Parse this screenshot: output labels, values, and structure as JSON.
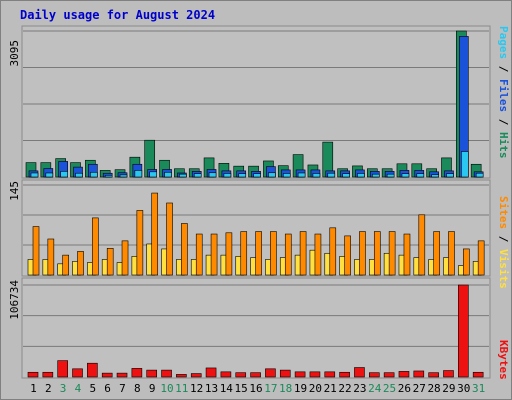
{
  "chart_data": [
    {
      "type": "bar",
      "title": "Daily usage for August 2024",
      "categories": [
        "1",
        "2",
        "3",
        "4",
        "5",
        "6",
        "7",
        "8",
        "9",
        "10",
        "11",
        "12",
        "13",
        "14",
        "15",
        "16",
        "17",
        "18",
        "19",
        "20",
        "21",
        "22",
        "23",
        "24",
        "25",
        "26",
        "27",
        "28",
        "29",
        "30",
        "31"
      ],
      "weekend_days": [
        "3",
        "4",
        "10",
        "11",
        "17",
        "18",
        "24",
        "25",
        "31"
      ],
      "ymax_label": "3095",
      "ylim": [
        0,
        3095
      ],
      "right_label": {
        "parts": [
          "Pages",
          "Files",
          "Hits"
        ],
        "separator": " / "
      },
      "series": [
        {
          "name": "Hits",
          "color": "#1a8a5a",
          "values": [
            305,
            305,
            390,
            305,
            355,
            140,
            155,
            420,
            780,
            355,
            175,
            175,
            405,
            290,
            230,
            230,
            340,
            240,
            475,
            255,
            740,
            175,
            235,
            175,
            175,
            280,
            280,
            175,
            405,
            3095,
            270
          ]
        },
        {
          "name": "Files",
          "color": "#1a52d9",
          "values": [
            130,
            180,
            330,
            210,
            270,
            80,
            90,
            270,
            160,
            160,
            85,
            120,
            160,
            130,
            130,
            120,
            220,
            150,
            150,
            150,
            130,
            130,
            150,
            120,
            120,
            140,
            140,
            110,
            130,
            2980,
            110
          ]
        },
        {
          "name": "Pages",
          "color": "#2ac8f0",
          "values": [
            85,
            85,
            120,
            80,
            100,
            35,
            45,
            140,
            110,
            100,
            60,
            70,
            90,
            75,
            70,
            70,
            90,
            75,
            85,
            75,
            80,
            70,
            75,
            60,
            60,
            70,
            70,
            50,
            70,
            540,
            80
          ]
        }
      ]
    },
    {
      "type": "bar",
      "categories": [
        "1",
        "2",
        "3",
        "4",
        "5",
        "6",
        "7",
        "8",
        "9",
        "10",
        "11",
        "12",
        "13",
        "14",
        "15",
        "16",
        "17",
        "18",
        "19",
        "20",
        "21",
        "22",
        "23",
        "24",
        "25",
        "26",
        "27",
        "28",
        "29",
        "30",
        "31"
      ],
      "ymax_label": "145",
      "ylim": [
        0,
        145
      ],
      "right_label": {
        "parts": [
          "Sites",
          "Visits"
        ],
        "separator": " / "
      },
      "series": [
        {
          "name": "Visits",
          "color": "#ffe040",
          "values": [
            25,
            25,
            18,
            22,
            20,
            25,
            20,
            30,
            50,
            42,
            25,
            25,
            32,
            32,
            30,
            28,
            25,
            28,
            32,
            40,
            35,
            30,
            25,
            25,
            35,
            32,
            28,
            25,
            28,
            15,
            22
          ]
        },
        {
          "name": "Sites",
          "color": "#ff8a00",
          "values": [
            78,
            58,
            32,
            38,
            92,
            43,
            55,
            104,
            132,
            116,
            83,
            66,
            66,
            68,
            70,
            70,
            70,
            66,
            70,
            66,
            76,
            63,
            70,
            70,
            70,
            66,
            97,
            70,
            70,
            42,
            55
          ]
        }
      ]
    },
    {
      "type": "bar",
      "categories": [
        "1",
        "2",
        "3",
        "4",
        "5",
        "6",
        "7",
        "8",
        "9",
        "10",
        "11",
        "12",
        "13",
        "14",
        "15",
        "16",
        "17",
        "18",
        "19",
        "20",
        "21",
        "22",
        "23",
        "24",
        "25",
        "26",
        "27",
        "28",
        "29",
        "30",
        "31"
      ],
      "ymax_label": "106734",
      "ylim": [
        0,
        106734
      ],
      "right_label": {
        "parts": [
          "KBytes"
        ],
        "separator": ""
      },
      "series": [
        {
          "name": "KBytes",
          "color": "#ee1111",
          "values": [
            5500,
            5500,
            19000,
            9500,
            16000,
            4500,
            4500,
            10000,
            8000,
            8000,
            3000,
            4000,
            10500,
            6000,
            5000,
            5000,
            9500,
            8000,
            6000,
            6000,
            6000,
            5500,
            11000,
            5000,
            5000,
            6500,
            7000,
            5000,
            7500,
            106734,
            5500
          ]
        }
      ]
    }
  ],
  "colors": {
    "background": "#bdbdbd",
    "plot_bg": "#c0c0c0",
    "title": "#0000cc",
    "grid": "#7a7a7a",
    "label_weekday": "#000000",
    "label_weekend": "#1a8a5a"
  }
}
